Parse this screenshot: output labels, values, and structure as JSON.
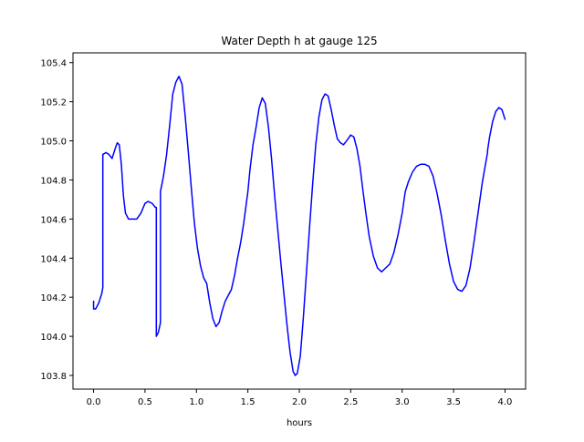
{
  "chart_data": {
    "type": "line",
    "title": "Water Depth h at gauge 125",
    "xlabel": "hours",
    "ylabel": "",
    "xlim": [
      -0.2,
      4.2
    ],
    "ylim": [
      103.73,
      105.45
    ],
    "xticks": [
      0.0,
      0.5,
      1.0,
      1.5,
      2.0,
      2.5,
      3.0,
      3.5,
      4.0
    ],
    "xtick_labels": [
      "0.0",
      "0.5",
      "1.0",
      "1.5",
      "2.0",
      "2.5",
      "3.0",
      "3.5",
      "4.0"
    ],
    "yticks": [
      103.8,
      104.0,
      104.2,
      104.4,
      104.6,
      104.8,
      105.0,
      105.2,
      105.4
    ],
    "ytick_labels": [
      "103.8",
      "104.0",
      "104.2",
      "104.4",
      "104.6",
      "104.8",
      "105.0",
      "105.2",
      "105.4"
    ],
    "grid": false,
    "series": [
      {
        "color": "#0000ff",
        "points": [
          [
            0.0,
            104.18
          ],
          [
            0.0,
            104.14
          ],
          [
            0.02,
            104.14
          ],
          [
            0.05,
            104.17
          ],
          [
            0.08,
            104.22
          ],
          [
            0.09,
            104.25
          ],
          [
            0.09,
            104.93
          ],
          [
            0.12,
            104.94
          ],
          [
            0.15,
            104.93
          ],
          [
            0.18,
            104.91
          ],
          [
            0.21,
            104.96
          ],
          [
            0.23,
            104.99
          ],
          [
            0.25,
            104.98
          ],
          [
            0.27,
            104.88
          ],
          [
            0.29,
            104.72
          ],
          [
            0.31,
            104.63
          ],
          [
            0.34,
            104.6
          ],
          [
            0.38,
            104.6
          ],
          [
            0.42,
            104.6
          ],
          [
            0.46,
            104.63
          ],
          [
            0.5,
            104.68
          ],
          [
            0.53,
            104.69
          ],
          [
            0.57,
            104.68
          ],
          [
            0.6,
            104.66
          ],
          [
            0.61,
            104.66
          ],
          [
            0.61,
            104.0
          ],
          [
            0.63,
            104.02
          ],
          [
            0.65,
            104.07
          ],
          [
            0.65,
            104.74
          ],
          [
            0.68,
            104.82
          ],
          [
            0.71,
            104.93
          ],
          [
            0.74,
            105.08
          ],
          [
            0.77,
            105.24
          ],
          [
            0.8,
            105.3
          ],
          [
            0.83,
            105.33
          ],
          [
            0.86,
            105.29
          ],
          [
            0.89,
            105.13
          ],
          [
            0.92,
            104.95
          ],
          [
            0.95,
            104.76
          ],
          [
            0.98,
            104.58
          ],
          [
            1.01,
            104.45
          ],
          [
            1.04,
            104.36
          ],
          [
            1.07,
            104.3
          ],
          [
            1.1,
            104.27
          ],
          [
            1.13,
            104.17
          ],
          [
            1.16,
            104.09
          ],
          [
            1.19,
            104.05
          ],
          [
            1.22,
            104.07
          ],
          [
            1.25,
            104.13
          ],
          [
            1.28,
            104.18
          ],
          [
            1.31,
            104.21
          ],
          [
            1.34,
            104.24
          ],
          [
            1.37,
            104.31
          ],
          [
            1.4,
            104.4
          ],
          [
            1.43,
            104.48
          ],
          [
            1.46,
            104.58
          ],
          [
            1.49,
            104.7
          ],
          [
            1.5,
            104.74
          ],
          [
            1.52,
            104.85
          ],
          [
            1.55,
            104.98
          ],
          [
            1.58,
            105.07
          ],
          [
            1.61,
            105.17
          ],
          [
            1.64,
            105.22
          ],
          [
            1.67,
            105.19
          ],
          [
            1.7,
            105.07
          ],
          [
            1.73,
            104.91
          ],
          [
            1.76,
            104.72
          ],
          [
            1.79,
            104.55
          ],
          [
            1.82,
            104.38
          ],
          [
            1.85,
            104.22
          ],
          [
            1.88,
            104.06
          ],
          [
            1.91,
            103.92
          ],
          [
            1.94,
            103.82
          ],
          [
            1.96,
            103.8
          ],
          [
            1.98,
            103.81
          ],
          [
            2.01,
            103.9
          ],
          [
            2.04,
            104.1
          ],
          [
            2.07,
            104.33
          ],
          [
            2.1,
            104.56
          ],
          [
            2.13,
            104.78
          ],
          [
            2.16,
            104.98
          ],
          [
            2.19,
            105.12
          ],
          [
            2.22,
            105.21
          ],
          [
            2.25,
            105.24
          ],
          [
            2.28,
            105.23
          ],
          [
            2.31,
            105.16
          ],
          [
            2.34,
            105.08
          ],
          [
            2.37,
            105.01
          ],
          [
            2.4,
            104.99
          ],
          [
            2.43,
            104.98
          ],
          [
            2.46,
            105.0
          ],
          [
            2.5,
            105.03
          ],
          [
            2.53,
            105.02
          ],
          [
            2.56,
            104.96
          ],
          [
            2.59,
            104.87
          ],
          [
            2.62,
            104.74
          ],
          [
            2.65,
            104.62
          ],
          [
            2.68,
            104.51
          ],
          [
            2.72,
            104.41
          ],
          [
            2.76,
            104.35
          ],
          [
            2.8,
            104.33
          ],
          [
            2.84,
            104.35
          ],
          [
            2.88,
            104.37
          ],
          [
            2.92,
            104.43
          ],
          [
            2.96,
            104.52
          ],
          [
            3.0,
            104.63
          ],
          [
            3.03,
            104.74
          ],
          [
            3.06,
            104.79
          ],
          [
            3.1,
            104.84
          ],
          [
            3.14,
            104.87
          ],
          [
            3.18,
            104.88
          ],
          [
            3.22,
            104.88
          ],
          [
            3.26,
            104.87
          ],
          [
            3.3,
            104.82
          ],
          [
            3.34,
            104.73
          ],
          [
            3.38,
            104.62
          ],
          [
            3.42,
            104.49
          ],
          [
            3.46,
            104.37
          ],
          [
            3.5,
            104.28
          ],
          [
            3.54,
            104.24
          ],
          [
            3.58,
            104.23
          ],
          [
            3.62,
            104.26
          ],
          [
            3.66,
            104.35
          ],
          [
            3.7,
            104.49
          ],
          [
            3.74,
            104.64
          ],
          [
            3.78,
            104.79
          ],
          [
            3.81,
            104.88
          ],
          [
            3.83,
            104.94
          ],
          [
            3.83,
            104.95
          ],
          [
            3.85,
            105.02
          ],
          [
            3.88,
            105.1
          ],
          [
            3.91,
            105.15
          ],
          [
            3.94,
            105.17
          ],
          [
            3.97,
            105.16
          ],
          [
            4.0,
            105.11
          ]
        ]
      }
    ]
  }
}
